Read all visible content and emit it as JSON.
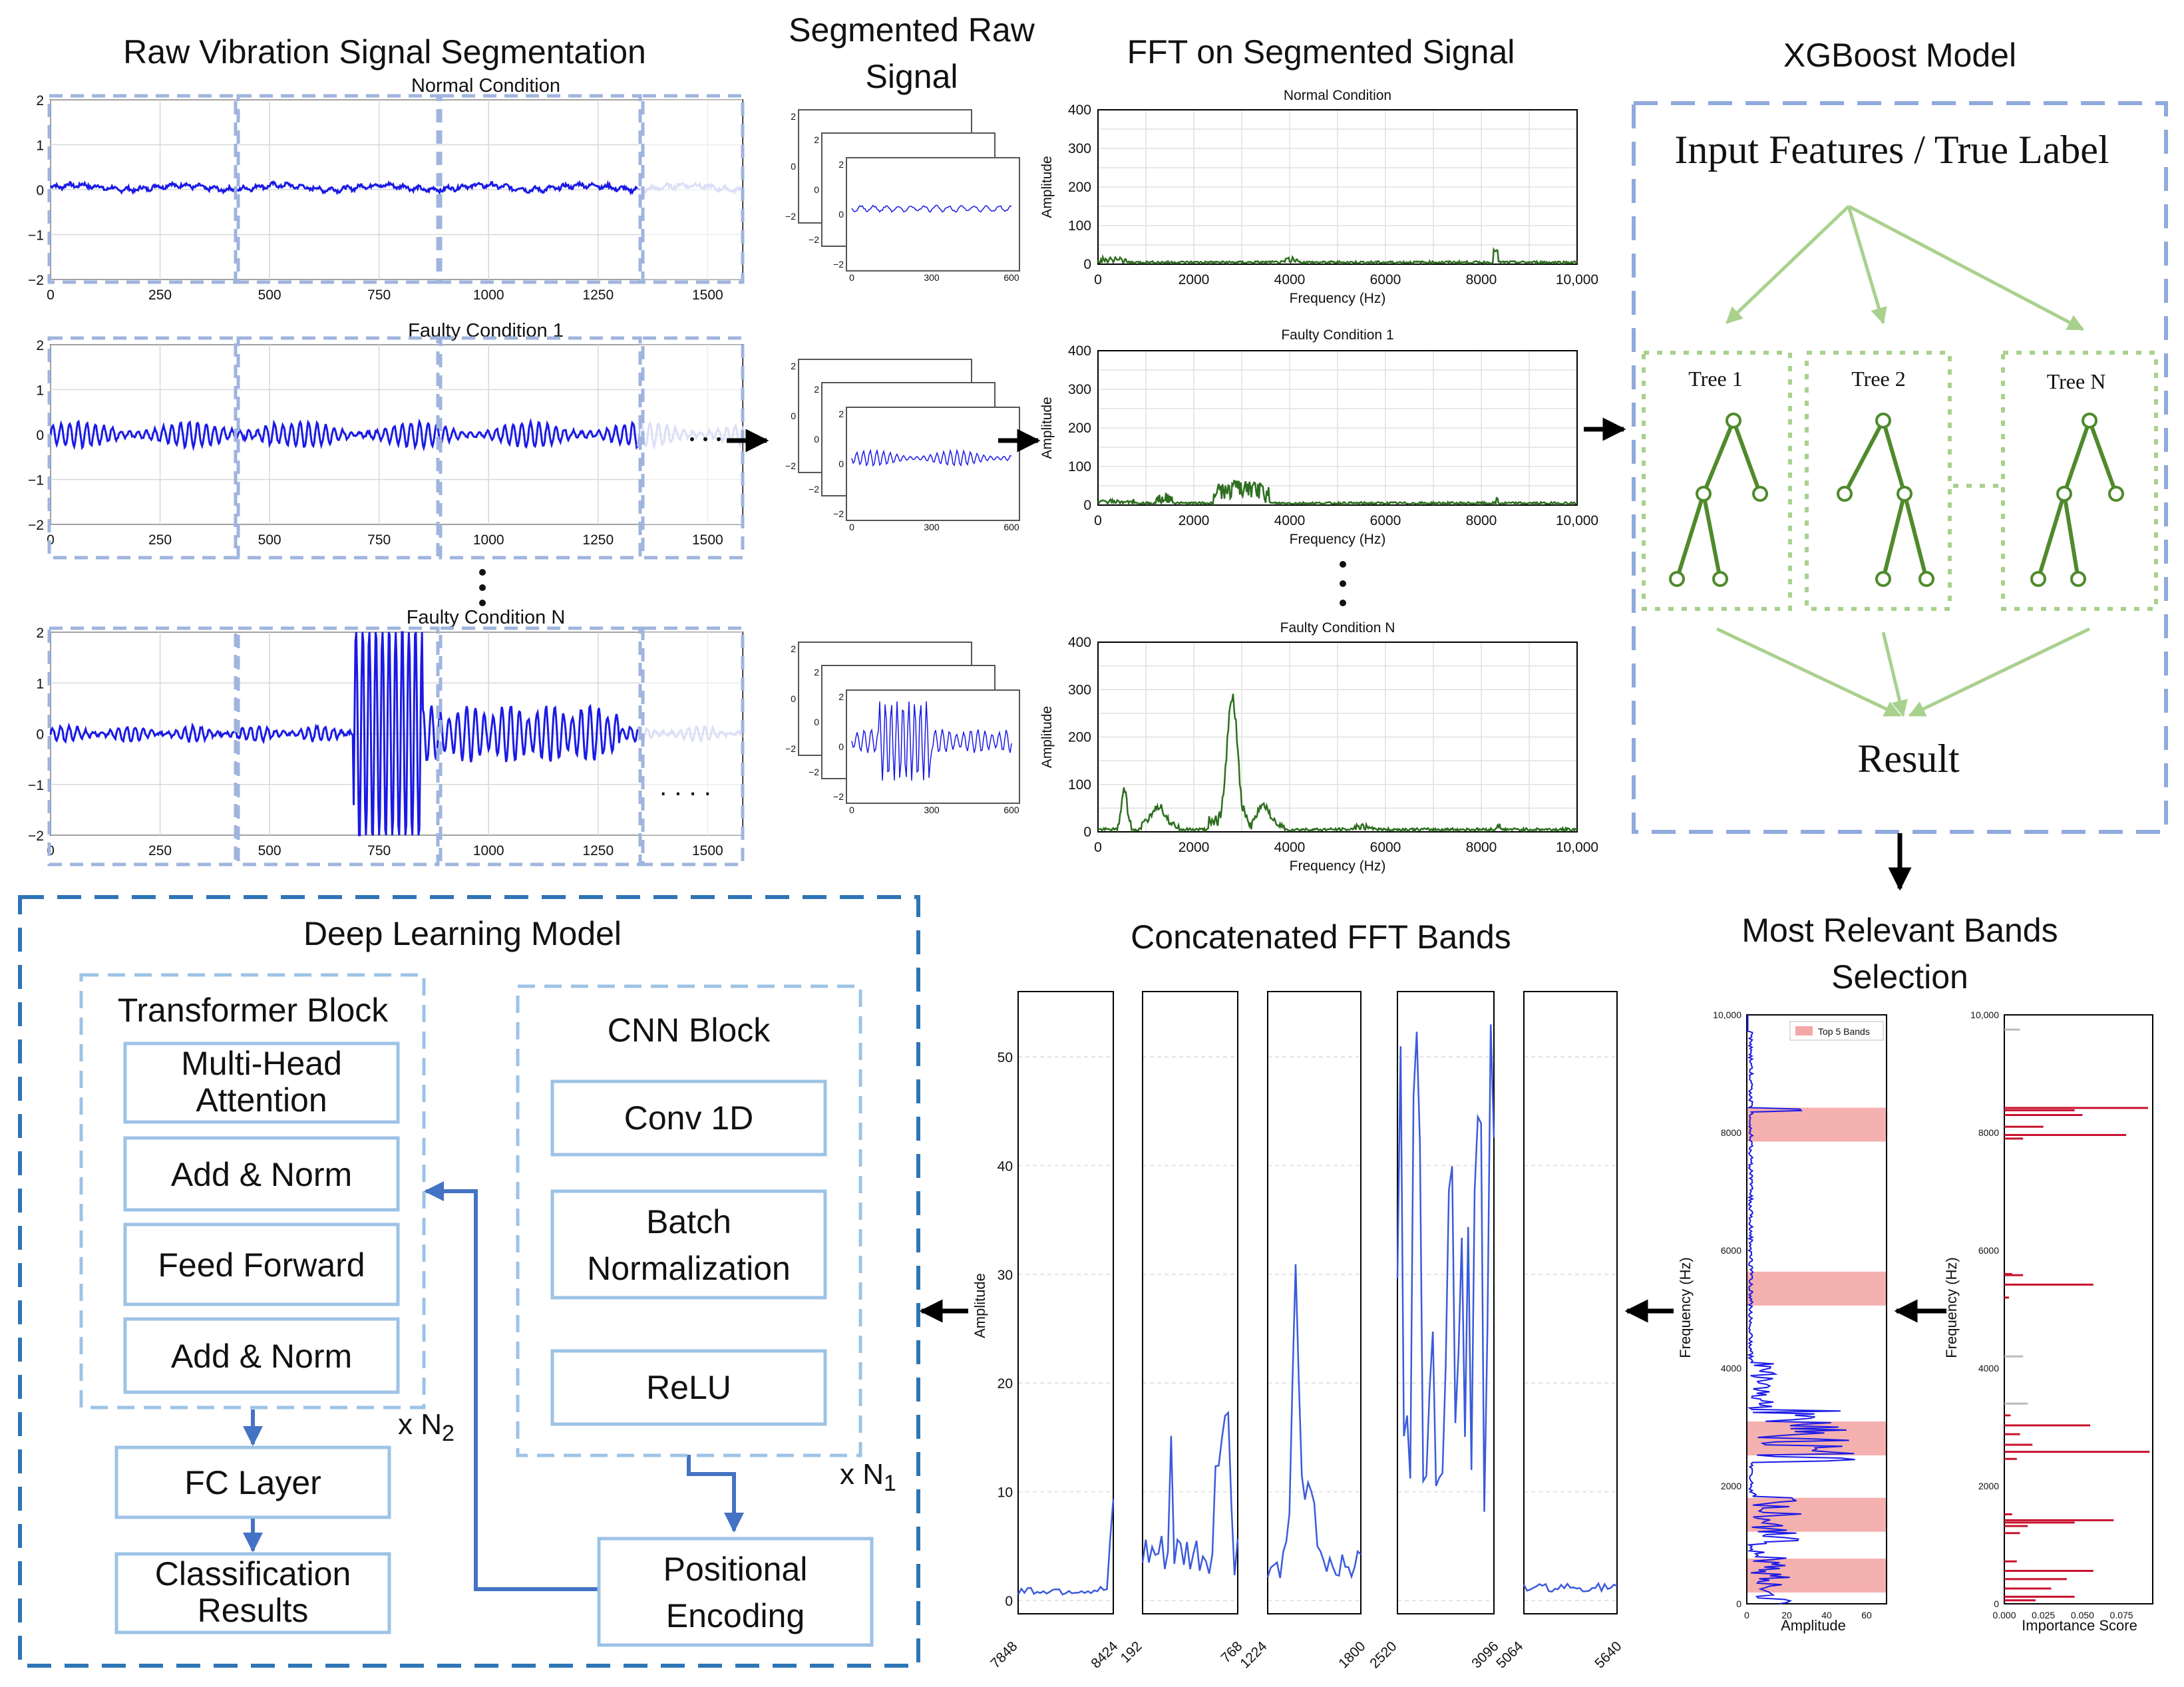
{
  "titles": {
    "raw_segmentation": "Raw Vibration Signal Segmentation",
    "segmented_raw_1": "Segmented Raw",
    "segmented_raw_2": "Signal",
    "fft_segmented": "FFT on Segmented Signal",
    "xgboost": "XGBoost Model",
    "deep_learning": "Deep Learning Model",
    "concat_fft": "Concatenated FFT Bands",
    "relevant_bands_1": "Most Relevant Bands",
    "relevant_bands_2": "Selection"
  },
  "conditions": [
    "Normal Condition",
    "Faulty Condition 1",
    "Faulty Condition N"
  ],
  "raw_axes": {
    "y_ticks": [
      "2",
      "1",
      "0",
      "−1",
      "−2"
    ],
    "x_ticks": [
      "0",
      "250",
      "500",
      "750",
      "1000",
      "1250",
      "1500"
    ]
  },
  "segment_axes": {
    "y_ticks": [
      "2",
      "0",
      "−2"
    ],
    "x_ticks": [
      "0",
      "300",
      "600"
    ]
  },
  "fft_axes": {
    "y_ticks": [
      "400",
      "300",
      "200",
      "100",
      "0"
    ],
    "x_ticks": [
      "0",
      "2000",
      "4000",
      "6000",
      "8000",
      "10,000"
    ],
    "xlabel": "Frequency (Hz)",
    "ylabel": "Amplitude"
  },
  "xgboost": {
    "input_label": "Input Features / True Label",
    "trees": [
      "Tree 1",
      "Tree 2",
      "Tree N"
    ],
    "result": "Result"
  },
  "relevant_bands": {
    "legend": "Top 5 Bands",
    "ylabel": "Frequency (Hz)",
    "left_xlabel": "Amplitude",
    "right_xlabel": "Importance Score",
    "y_ticks": [
      "10,000",
      "8000",
      "6000",
      "4000",
      "2000",
      "0"
    ],
    "left_x_ticks": [
      "0",
      "20",
      "40",
      "60"
    ],
    "right_x_ticks": [
      "0.000",
      "0.025",
      "0.050",
      "0.075"
    ],
    "bands": [
      [
        7848,
        8424
      ],
      [
        5064,
        5640
      ],
      [
        2520,
        3096
      ],
      [
        1224,
        1800
      ],
      [
        192,
        768
      ]
    ]
  },
  "concat_fft": {
    "ylabel": "Amplitude",
    "y_ticks": [
      "50",
      "40",
      "30",
      "20",
      "10",
      "0"
    ],
    "panels": [
      {
        "start": "7848",
        "end": "8424"
      },
      {
        "start": "192",
        "end": "768"
      },
      {
        "start": "1224",
        "end": "1800"
      },
      {
        "start": "2520",
        "end": "3096"
      },
      {
        "start": "5064",
        "end": "5640"
      }
    ]
  },
  "deep_learning": {
    "transformer_title": "Transformer Block",
    "mha_1": "Multi-Head",
    "mha_2": "Attention",
    "add_norm_1": "Add & Norm",
    "feed_forward": "Feed Forward",
    "add_norm_2": "Add & Norm",
    "cnn_title": "CNN Block",
    "conv": "Conv 1D",
    "batch_1": "Batch",
    "batch_2": "Normalization",
    "relu": "ReLU",
    "fc": "FC Layer",
    "cls_1": "Classification",
    "cls_2": "Results",
    "pe_1": "Positional",
    "pe_2": "Encoding",
    "n2_prefix": "x N",
    "n2_sub": "2",
    "n1_prefix": "x N",
    "n1_sub": "1"
  },
  "misc": {
    "dots": ". . . ."
  },
  "colors": {
    "signal": "#1a1ae6",
    "fft": "#2d6e1f",
    "xgb_border": "#8faadc",
    "tree": "#4f8a2c",
    "tree_light": "#a9d18e",
    "dl_border": "#2e75b6",
    "dl_inner": "#9dc3e6",
    "band": "#f4a7a7",
    "importance": "#c8102e"
  }
}
